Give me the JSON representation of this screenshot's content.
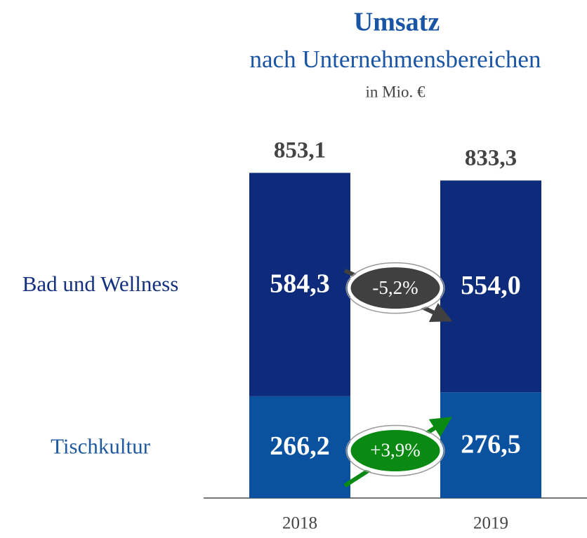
{
  "chart_data": {
    "type": "stacked_bar",
    "title": "Umsatz",
    "subtitle": "nach Unternehmensbereichen",
    "unit_label": "in Mio. €",
    "categories": [
      "2018",
      "2019"
    ],
    "series": [
      {
        "name": "Tischkultur",
        "color": "#0a52a0",
        "label_color": "#1f5aa0",
        "values": [
          266.2,
          276.5
        ],
        "value_labels": [
          "266,2",
          "276,5"
        ],
        "change": 3.9,
        "change_label": "+3,9%",
        "change_color": "#0a8a12"
      },
      {
        "name": "Bad und Wellness",
        "color": "#0d2b7a",
        "label_color": "#14307f",
        "values": [
          584.3,
          554.0
        ],
        "value_labels": [
          "584,3",
          "554,0"
        ],
        "change": -5.2,
        "change_label": "-5,2%",
        "change_color": "#404040"
      }
    ],
    "totals": [
      853.1,
      833.3
    ],
    "total_labels": [
      "853,1",
      "833,3"
    ]
  }
}
